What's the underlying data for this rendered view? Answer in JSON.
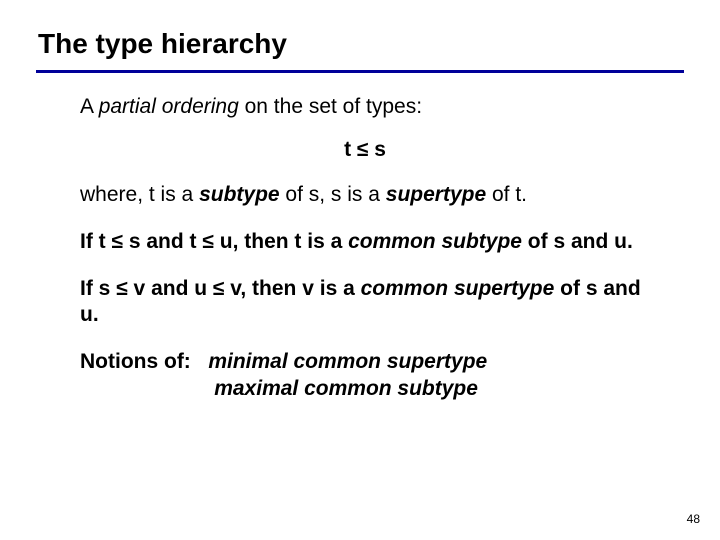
{
  "colors": {
    "rule": "#000099",
    "text": "#000000",
    "background": "#ffffff"
  },
  "title": "The type hierarchy",
  "le": "≤",
  "p1_a": "A ",
  "p1_b": "partial ordering",
  "p1_c": " on the set of types:",
  "formula_t": "t ",
  "formula_s": " s",
  "p2_a": "where, t is a ",
  "p2_b": "subtype",
  "p2_c": " of s, s is a ",
  "p2_d": "supertype",
  "p2_e": " of t.",
  "p3_a": "If t ",
  "p3_b": " s and t ",
  "p3_c": " u, then t is a ",
  "p3_d": "common subtype",
  "p3_e": " of s and u.",
  "p4_a": "If s ",
  "p4_b": " v and u ",
  "p4_c": " v, then v is a ",
  "p4_d": "common supertype",
  "p4_e": " of s and u.",
  "p5_a": "Notions of:   ",
  "p5_b": "minimal common supertype",
  "p5_c": "                       ",
  "p5_d": "maximal common subtype",
  "page_number": "48"
}
